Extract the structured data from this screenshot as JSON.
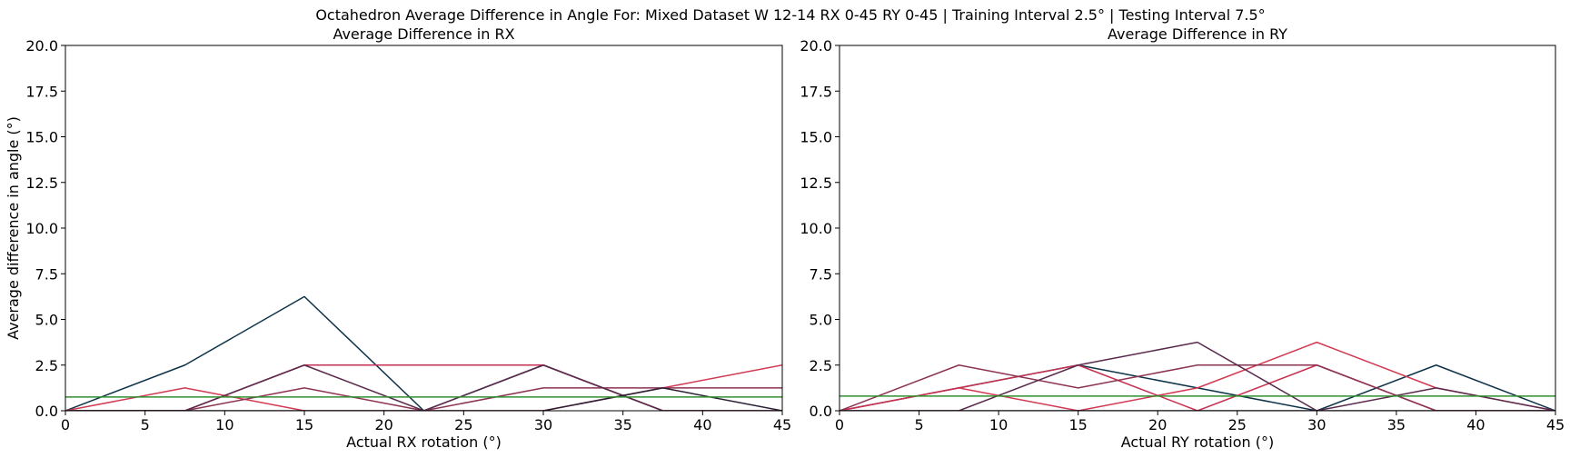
{
  "figure": {
    "suptitle": "Octahedron Average Difference in Angle For: Mixed Dataset W 12-14 RX 0-45 RY 0-45 | Training Interval 2.5° | Testing Interval 7.5°"
  },
  "chart_data": [
    {
      "type": "line",
      "title": "Average Difference in RX",
      "xlabel": "Actual RX rotation (°)",
      "ylabel": "Average difference in angle (°)",
      "xlim": [
        0,
        45
      ],
      "ylim": [
        0,
        20
      ],
      "xticks": [
        0,
        5,
        10,
        15,
        20,
        25,
        30,
        35,
        40,
        45
      ],
      "yticks": [
        0,
        2.5,
        5,
        7.5,
        10,
        12.5,
        15,
        17.5,
        20
      ],
      "xtick_labels": [
        "0",
        "5",
        "10",
        "15",
        "20",
        "25",
        "30",
        "35",
        "40",
        "45"
      ],
      "ytick_labels": [
        "0.0",
        "2.5",
        "5.0",
        "7.5",
        "10.0",
        "12.5",
        "15.0",
        "17.5",
        "20.0"
      ],
      "x": [
        0,
        7.5,
        15,
        22.5,
        30,
        37.5,
        45
      ],
      "series": [
        {
          "color": "#0d3349",
          "values": [
            0,
            2.5,
            6.25,
            0,
            2.5,
            0,
            0
          ]
        },
        {
          "color": "#d13a52",
          "values": [
            0,
            1.25,
            0,
            0,
            0,
            1.25,
            2.5
          ]
        },
        {
          "color": "#c73050",
          "values": [
            0,
            0,
            2.5,
            2.5,
            2.5,
            0,
            0
          ]
        },
        {
          "color": "#8c3352",
          "values": [
            0,
            0,
            1.25,
            0,
            1.25,
            1.25,
            1.25
          ]
        },
        {
          "color": "#5a2a4c",
          "values": [
            0,
            0,
            2.5,
            0,
            2.5,
            0,
            0
          ]
        },
        {
          "color": "#2a1f35",
          "values": [
            0,
            0,
            0,
            0,
            0,
            1.25,
            0
          ]
        },
        {
          "color": "#2f8f2f",
          "values": [
            0.75,
            0.75,
            0.75,
            0.75,
            0.75,
            0.75,
            0.75
          ]
        }
      ]
    },
    {
      "type": "line",
      "title": "Average Difference in RY",
      "xlabel": "Actual RY rotation (°)",
      "ylabel": "",
      "xlim": [
        0,
        45
      ],
      "ylim": [
        0,
        20
      ],
      "xticks": [
        0,
        5,
        10,
        15,
        20,
        25,
        30,
        35,
        40,
        45
      ],
      "yticks": [
        0,
        2.5,
        5,
        7.5,
        10,
        12.5,
        15,
        17.5,
        20
      ],
      "xtick_labels": [
        "0",
        "5",
        "10",
        "15",
        "20",
        "25",
        "30",
        "35",
        "40",
        "45"
      ],
      "ytick_labels": [
        "0.0",
        "2.5",
        "5.0",
        "7.5",
        "10.0",
        "12.5",
        "15.0",
        "17.5",
        "20.0"
      ],
      "x": [
        0,
        7.5,
        15,
        22.5,
        30,
        37.5,
        45
      ],
      "series": [
        {
          "color": "#0d3349",
          "values": [
            0,
            1.25,
            2.5,
            1.25,
            0,
            2.5,
            0
          ]
        },
        {
          "color": "#d13a52",
          "values": [
            0,
            1.25,
            0,
            1.25,
            3.75,
            1.25,
            0
          ]
        },
        {
          "color": "#c73050",
          "values": [
            0,
            1.25,
            2.5,
            0,
            2.5,
            0,
            0
          ]
        },
        {
          "color": "#8c3352",
          "values": [
            0,
            2.5,
            1.25,
            2.5,
            2.5,
            0,
            0
          ]
        },
        {
          "color": "#5a2a4c",
          "values": [
            0,
            0,
            2.5,
            3.75,
            0,
            1.25,
            0
          ]
        },
        {
          "color": "#2a1f35",
          "values": [
            0,
            0,
            0,
            0,
            0,
            0,
            0
          ]
        },
        {
          "color": "#2f8f2f",
          "values": [
            0.8,
            0.8,
            0.8,
            0.8,
            0.8,
            0.8,
            0.8
          ]
        }
      ]
    }
  ]
}
